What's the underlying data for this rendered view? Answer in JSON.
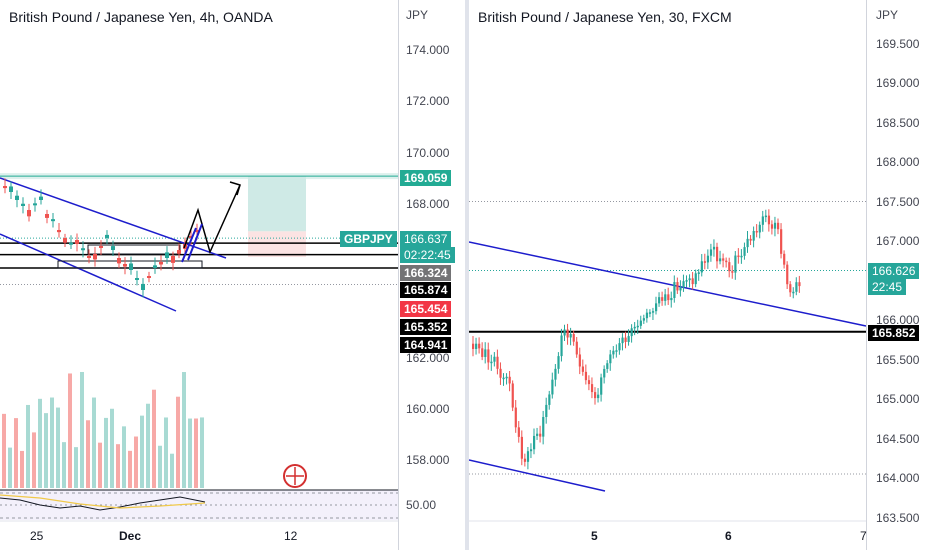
{
  "left": {
    "title": "British Pound / Japanese Yen, 4h, OANDA",
    "currency": "JPY",
    "price_ticks": [
      "174.000",
      "172.000",
      "170.000",
      "168.000",
      "162.000",
      "160.000",
      "158.000"
    ],
    "rsi_tick": "50.00",
    "time_ticks": [
      "25",
      "Dec",
      "12"
    ],
    "tags": {
      "target": "169.059",
      "symbol": "GBPJPY",
      "last": "166.637",
      "countdown": "02:22:45",
      "level1": "166.324",
      "level2": "165.874",
      "stop": "165.454",
      "level3": "165.352",
      "level4": "164.941"
    },
    "colors": {
      "up": "#26a69a",
      "down": "#ef5350",
      "trend": "#1d1dcc",
      "target_zone": "#cfeae6",
      "stop_zone": "#fbe3e3"
    }
  },
  "right": {
    "title": "British Pound / Japanese Yen, 30, FXCM",
    "currency": "JPY",
    "price_ticks": [
      "169.500",
      "169.000",
      "168.500",
      "168.000",
      "167.500",
      "167.000",
      "166.000",
      "165.500",
      "165.000",
      "164.500",
      "164.000",
      "163.500"
    ],
    "time_ticks": [
      "5",
      "6",
      "7"
    ],
    "tags": {
      "last": "166.626",
      "countdown": "22:45",
      "level": "165.852"
    }
  }
}
